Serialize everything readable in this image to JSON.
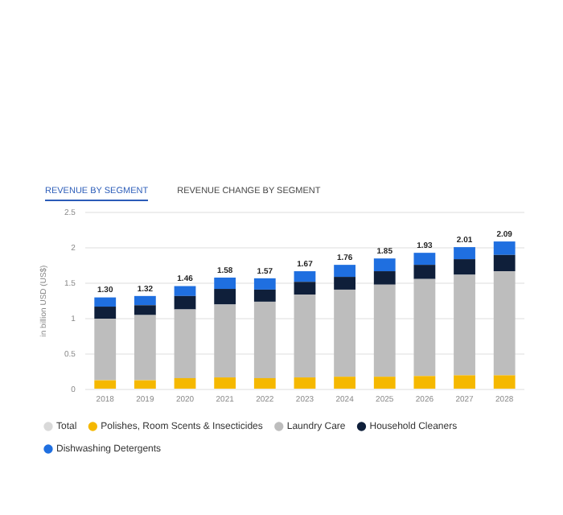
{
  "chart_data": {
    "type": "bar",
    "stacked": true,
    "ylabel": "in billion USD (US$)",
    "annotations": [
      "REVENUE BY SEGMENT",
      "REVENUE CHANGE BY SEGMENT"
    ],
    "categories": [
      "2018",
      "2019",
      "2020",
      "2021",
      "2022",
      "2023",
      "2024",
      "2025",
      "2026",
      "2027",
      "2028"
    ],
    "series": [
      {
        "name": "Total",
        "color": "#d9d9d9",
        "values": [
          null,
          null,
          null,
          null,
          null,
          null,
          null,
          null,
          null,
          null,
          null
        ]
      },
      {
        "name": "Polishes, Room Scents & Insecticides",
        "color": "#f5b800",
        "values": [
          0.13,
          0.13,
          0.16,
          0.17,
          0.16,
          0.17,
          0.18,
          0.18,
          0.19,
          0.2,
          0.2
        ]
      },
      {
        "name": "Laundry Care",
        "color": "#bdbdbd",
        "values": [
          0.87,
          0.92,
          0.97,
          1.03,
          1.08,
          1.17,
          1.23,
          1.3,
          1.37,
          1.42,
          1.47
        ]
      },
      {
        "name": "Household Cleaners",
        "color": "#0f1f3a",
        "values": [
          0.17,
          0.14,
          0.19,
          0.22,
          0.17,
          0.18,
          0.18,
          0.19,
          0.2,
          0.22,
          0.23
        ]
      },
      {
        "name": "Dishwashing Detergents",
        "color": "#1f6fe0",
        "values": [
          0.13,
          0.13,
          0.14,
          0.16,
          0.16,
          0.15,
          0.17,
          0.18,
          0.17,
          0.17,
          0.19
        ]
      }
    ],
    "totals": [
      "1.30",
      "1.32",
      "1.46",
      "1.58",
      "1.57",
      "1.67",
      "1.76",
      "1.85",
      "1.93",
      "2.01",
      "2.09"
    ],
    "ylim": [
      0,
      2.5
    ],
    "yticks": [
      0,
      0.5,
      1,
      1.5,
      2,
      2.5
    ],
    "grid": "y",
    "legend": "bottom"
  }
}
